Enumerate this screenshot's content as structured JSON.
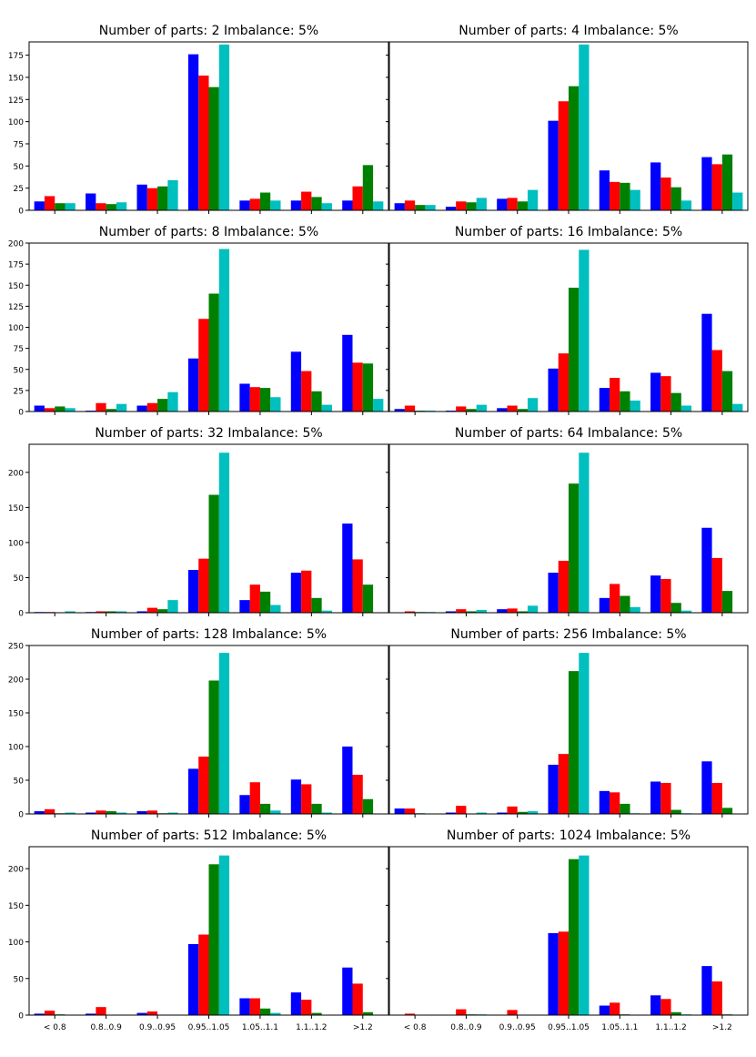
{
  "colors": [
    "#0000ff",
    "#ff0000",
    "#008000",
    "#00bfbf"
  ],
  "chart_data": [
    {
      "type": "bar",
      "title": "Number of parts: 2   Imbalance: 5%",
      "categories": [
        "< 0.8",
        "0.8..0.9",
        "0.9..0.95",
        "0.95..1.05",
        "1.05..1.1",
        "1.1..1.2",
        ">1.2"
      ],
      "ylim": [
        0,
        190
      ],
      "yticks": [
        "0",
        "25",
        "50",
        "75",
        "100",
        "125",
        "150",
        "175"
      ],
      "ytick_values": [
        0,
        25,
        50,
        75,
        100,
        125,
        150,
        175
      ],
      "series": [
        {
          "values": [
            10,
            19,
            29,
            176,
            11,
            11,
            11
          ]
        },
        {
          "values": [
            16,
            8,
            25,
            152,
            13,
            21,
            27
          ]
        },
        {
          "values": [
            8,
            7,
            27,
            139,
            20,
            15,
            51
          ]
        },
        {
          "values": [
            8,
            9,
            34,
            187,
            11,
            8,
            10
          ]
        }
      ]
    },
    {
      "type": "bar",
      "title": "Number of parts: 4   Imbalance: 5%",
      "categories": [
        "< 0.8",
        "0.8..0.9",
        "0.9..0.95",
        "0.95..1.05",
        "1.05..1.1",
        "1.1..1.2",
        ">1.2"
      ],
      "ylim": [
        0,
        190
      ],
      "yticks": [],
      "ytick_values": [
        0,
        25,
        50,
        75,
        100,
        125,
        150,
        175
      ],
      "series": [
        {
          "values": [
            8,
            4,
            13,
            101,
            45,
            54,
            60
          ]
        },
        {
          "values": [
            11,
            10,
            14,
            123,
            32,
            37,
            52
          ]
        },
        {
          "values": [
            6,
            9,
            10,
            140,
            31,
            26,
            63
          ]
        },
        {
          "values": [
            6,
            14,
            23,
            187,
            23,
            11,
            20
          ]
        }
      ]
    },
    {
      "type": "bar",
      "title": "Number of parts: 8   Imbalance: 5%",
      "categories": [
        "< 0.8",
        "0.8..0.9",
        "0.9..0.95",
        "0.95..1.05",
        "1.05..1.1",
        "1.1..1.2",
        ">1.2"
      ],
      "ylim": [
        0,
        200
      ],
      "yticks": [
        "0",
        "25",
        "50",
        "75",
        "100",
        "125",
        "150",
        "175",
        "200"
      ],
      "ytick_values": [
        0,
        25,
        50,
        75,
        100,
        125,
        150,
        175,
        200
      ],
      "series": [
        {
          "values": [
            7,
            1,
            7,
            63,
            33,
            71,
            91
          ]
        },
        {
          "values": [
            4,
            10,
            10,
            110,
            29,
            48,
            58
          ]
        },
        {
          "values": [
            6,
            3,
            15,
            140,
            28,
            24,
            57
          ]
        },
        {
          "values": [
            4,
            9,
            23,
            193,
            17,
            8,
            15
          ]
        }
      ]
    },
    {
      "type": "bar",
      "title": "Number of parts: 16   Imbalance: 5%",
      "categories": [
        "< 0.8",
        "0.8..0.9",
        "0.9..0.95",
        "0.95..1.05",
        "1.05..1.1",
        "1.1..1.2",
        ">1.2"
      ],
      "ylim": [
        0,
        200
      ],
      "yticks": [],
      "ytick_values": [
        0,
        25,
        50,
        75,
        100,
        125,
        150,
        175,
        200
      ],
      "series": [
        {
          "values": [
            3,
            1,
            4,
            51,
            28,
            46,
            116
          ]
        },
        {
          "values": [
            7,
            6,
            7,
            69,
            40,
            42,
            73
          ]
        },
        {
          "values": [
            1,
            3,
            3,
            147,
            24,
            22,
            48
          ]
        },
        {
          "values": [
            1,
            8,
            16,
            192,
            13,
            7,
            9
          ]
        }
      ]
    },
    {
      "type": "bar",
      "title": "Number of parts: 32   Imbalance: 5%",
      "categories": [
        "< 0.8",
        "0.8..0.9",
        "0.9..0.95",
        "0.95..1.05",
        "1.05..1.1",
        "1.1..1.2",
        ">1.2"
      ],
      "ylim": [
        0,
        240
      ],
      "yticks": [
        "0",
        "50",
        "100",
        "150",
        "200"
      ],
      "ytick_values": [
        0,
        50,
        100,
        150,
        200
      ],
      "series": [
        {
          "values": [
            1,
            1,
            2,
            61,
            18,
            57,
            127
          ]
        },
        {
          "values": [
            1,
            2,
            7,
            77,
            40,
            60,
            76
          ]
        },
        {
          "values": [
            0,
            2,
            5,
            168,
            30,
            21,
            40
          ]
        },
        {
          "values": [
            2,
            2,
            18,
            228,
            11,
            3,
            0
          ]
        }
      ]
    },
    {
      "type": "bar",
      "title": "Number of parts: 64   Imbalance: 5%",
      "categories": [
        "< 0.8",
        "0.8..0.9",
        "0.9..0.95",
        "0.95..1.05",
        "1.05..1.1",
        "1.1..1.2",
        ">1.2"
      ],
      "ylim": [
        0,
        240
      ],
      "yticks": [],
      "ytick_values": [
        0,
        50,
        100,
        150,
        200
      ],
      "series": [
        {
          "values": [
            0,
            2,
            5,
            57,
            21,
            53,
            121
          ]
        },
        {
          "values": [
            2,
            5,
            6,
            74,
            41,
            48,
            78
          ]
        },
        {
          "values": [
            1,
            2,
            2,
            184,
            24,
            14,
            31
          ]
        },
        {
          "values": [
            1,
            4,
            10,
            228,
            8,
            3,
            0
          ]
        }
      ]
    },
    {
      "type": "bar",
      "title": "Number of parts: 128   Imbalance: 5%",
      "categories": [
        "< 0.8",
        "0.8..0.9",
        "0.9..0.95",
        "0.95..1.05",
        "1.05..1.1",
        "1.1..1.2",
        ">1.2"
      ],
      "ylim": [
        0,
        250
      ],
      "yticks": [
        "0",
        "50",
        "100",
        "150",
        "200",
        "250"
      ],
      "ytick_values": [
        0,
        50,
        100,
        150,
        200,
        250
      ],
      "series": [
        {
          "values": [
            4,
            2,
            4,
            67,
            28,
            51,
            100
          ]
        },
        {
          "values": [
            7,
            5,
            5,
            85,
            47,
            44,
            58
          ]
        },
        {
          "values": [
            1,
            4,
            1,
            198,
            15,
            15,
            22
          ]
        },
        {
          "values": [
            2,
            2,
            2,
            239,
            5,
            2,
            0
          ]
        }
      ]
    },
    {
      "type": "bar",
      "title": "Number of parts: 256   Imbalance: 5%",
      "categories": [
        "< 0.8",
        "0.8..0.9",
        "0.9..0.95",
        "0.95..1.05",
        "1.05..1.1",
        "1.1..1.2",
        ">1.2"
      ],
      "ylim": [
        0,
        250
      ],
      "yticks": [],
      "ytick_values": [
        0,
        50,
        100,
        150,
        200,
        250
      ],
      "series": [
        {
          "values": [
            8,
            2,
            2,
            73,
            34,
            48,
            78
          ]
        },
        {
          "values": [
            8,
            12,
            11,
            89,
            32,
            46,
            46
          ]
        },
        {
          "values": [
            1,
            0,
            3,
            212,
            15,
            6,
            9
          ]
        },
        {
          "values": [
            0,
            2,
            4,
            239,
            1,
            1,
            0
          ]
        }
      ]
    },
    {
      "type": "bar",
      "title": "Number of parts: 512   Imbalance: 5%",
      "categories": [
        "< 0.8",
        "0.8..0.9",
        "0.9..0.95",
        "0.95..1.05",
        "1.05..1.1",
        "1.1..1.2",
        ">1.2"
      ],
      "ylim": [
        0,
        230
      ],
      "yticks": [
        "0",
        "50",
        "100",
        "150",
        "200"
      ],
      "ytick_values": [
        0,
        50,
        100,
        150,
        200
      ],
      "series": [
        {
          "values": [
            2,
            2,
            3,
            97,
            23,
            31,
            65
          ]
        },
        {
          "values": [
            6,
            11,
            5,
            110,
            23,
            21,
            43
          ]
        },
        {
          "values": [
            1,
            0,
            0,
            206,
            9,
            3,
            4
          ]
        },
        {
          "values": [
            0,
            0,
            0,
            218,
            3,
            0,
            0
          ]
        }
      ]
    },
    {
      "type": "bar",
      "title": "Number of parts: 1024   Imbalance: 5%",
      "categories": [
        "< 0.8",
        "0.8..0.9",
        "0.9..0.95",
        "0.95..1.05",
        "1.05..1.1",
        "1.1..1.2",
        ">1.2"
      ],
      "ylim": [
        0,
        230
      ],
      "yticks": [],
      "ytick_values": [
        0,
        50,
        100,
        150,
        200
      ],
      "series": [
        {
          "values": [
            0,
            0,
            0,
            112,
            13,
            27,
            67
          ]
        },
        {
          "values": [
            2,
            8,
            7,
            114,
            17,
            22,
            46
          ]
        },
        {
          "values": [
            0,
            1,
            0,
            213,
            1,
            4,
            1
          ]
        },
        {
          "values": [
            0,
            1,
            0,
            218,
            0,
            1,
            0
          ]
        }
      ]
    }
  ]
}
